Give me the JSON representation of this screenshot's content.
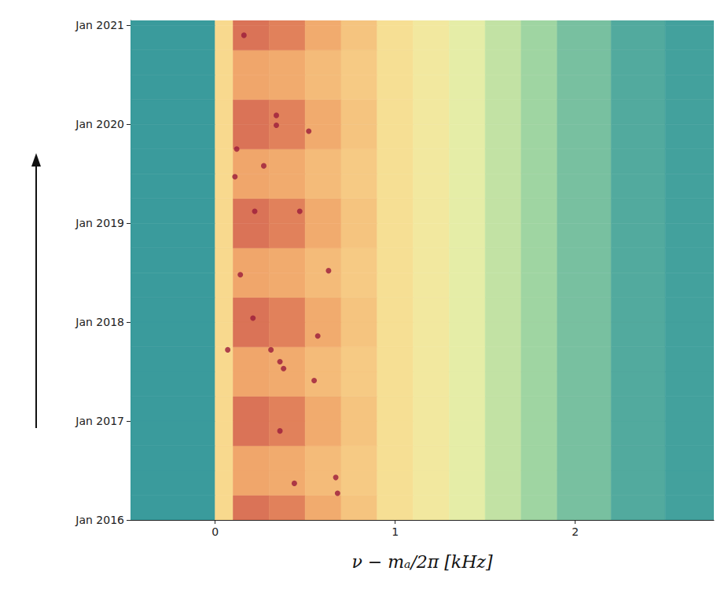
{
  "chart_data": {
    "type": "heatmap",
    "x_label": "ν − mₐ/2π [kHz]",
    "xlim": [
      -0.47,
      2.77
    ],
    "xticks": [
      0,
      1,
      2
    ],
    "ylim": [
      2016,
      2021.05
    ],
    "yticks": [
      {
        "value": 2016,
        "label": "Jan 2016"
      },
      {
        "value": 2017,
        "label": "Jan 2017"
      },
      {
        "value": 2018,
        "label": "Jan 2018"
      },
      {
        "value": 2019,
        "label": "Jan 2019"
      },
      {
        "value": 2020,
        "label": "Jan 2020"
      },
      {
        "value": 2021,
        "label": "Jan 2021"
      }
    ],
    "color_range": [
      0,
      1
    ],
    "cells": {
      "x_edges": [
        -0.5,
        0,
        0.1,
        0.3,
        0.5,
        0.7,
        0.9,
        1.1,
        1.3,
        1.5,
        1.7,
        1.9,
        2.2,
        2.5,
        2.8
      ],
      "y_edges": [
        2016,
        2016.25,
        2016.5,
        2016.75,
        2017,
        2017.25,
        2017.5,
        2017.75,
        2018,
        2018.25,
        2018.5,
        2018.75,
        2019,
        2019.25,
        2019.5,
        2019.75,
        2020,
        2020.25,
        2020.5,
        2020.75,
        2021,
        2021.25
      ],
      "values": [
        [
          0,
          0.5,
          0.8,
          0.78,
          0.66,
          0.57,
          0.47,
          0.42,
          0.36,
          0.3,
          0.24,
          0.17,
          0.08,
          0.03
        ],
        [
          0,
          0.5,
          0.68,
          0.66,
          0.6,
          0.55,
          0.47,
          0.42,
          0.36,
          0.3,
          0.24,
          0.17,
          0.08,
          0.03
        ],
        [
          0,
          0.5,
          0.68,
          0.66,
          0.6,
          0.55,
          0.47,
          0.42,
          0.36,
          0.3,
          0.24,
          0.17,
          0.08,
          0.03
        ],
        [
          0,
          0.5,
          0.8,
          0.78,
          0.66,
          0.57,
          0.47,
          0.42,
          0.36,
          0.3,
          0.24,
          0.17,
          0.08,
          0.03
        ],
        [
          0,
          0.5,
          0.8,
          0.78,
          0.66,
          0.57,
          0.47,
          0.42,
          0.36,
          0.3,
          0.24,
          0.17,
          0.08,
          0.03
        ],
        [
          0,
          0.5,
          0.68,
          0.66,
          0.6,
          0.55,
          0.47,
          0.42,
          0.36,
          0.3,
          0.24,
          0.17,
          0.08,
          0.03
        ],
        [
          0,
          0.5,
          0.68,
          0.66,
          0.6,
          0.55,
          0.47,
          0.42,
          0.36,
          0.3,
          0.24,
          0.17,
          0.08,
          0.03
        ],
        [
          0,
          0.5,
          0.8,
          0.78,
          0.66,
          0.57,
          0.47,
          0.42,
          0.36,
          0.3,
          0.24,
          0.17,
          0.08,
          0.03
        ],
        [
          0,
          0.5,
          0.8,
          0.78,
          0.66,
          0.57,
          0.47,
          0.42,
          0.36,
          0.3,
          0.24,
          0.17,
          0.08,
          0.03
        ],
        [
          0,
          0.5,
          0.68,
          0.66,
          0.6,
          0.55,
          0.47,
          0.42,
          0.36,
          0.3,
          0.24,
          0.17,
          0.08,
          0.03
        ],
        [
          0,
          0.5,
          0.68,
          0.66,
          0.6,
          0.55,
          0.47,
          0.42,
          0.36,
          0.3,
          0.24,
          0.17,
          0.08,
          0.03
        ],
        [
          0,
          0.5,
          0.8,
          0.78,
          0.66,
          0.57,
          0.47,
          0.42,
          0.36,
          0.3,
          0.24,
          0.17,
          0.08,
          0.03
        ],
        [
          0,
          0.5,
          0.8,
          0.78,
          0.66,
          0.57,
          0.47,
          0.42,
          0.36,
          0.3,
          0.24,
          0.17,
          0.08,
          0.03
        ],
        [
          0,
          0.5,
          0.68,
          0.66,
          0.6,
          0.55,
          0.47,
          0.42,
          0.36,
          0.3,
          0.24,
          0.17,
          0.08,
          0.03
        ],
        [
          0,
          0.5,
          0.68,
          0.66,
          0.6,
          0.55,
          0.47,
          0.42,
          0.36,
          0.3,
          0.24,
          0.17,
          0.08,
          0.03
        ],
        [
          0,
          0.5,
          0.8,
          0.78,
          0.66,
          0.57,
          0.47,
          0.42,
          0.36,
          0.3,
          0.24,
          0.17,
          0.08,
          0.03
        ],
        [
          0,
          0.5,
          0.8,
          0.78,
          0.66,
          0.57,
          0.47,
          0.42,
          0.36,
          0.3,
          0.24,
          0.17,
          0.08,
          0.03
        ],
        [
          0,
          0.5,
          0.68,
          0.66,
          0.6,
          0.55,
          0.47,
          0.42,
          0.36,
          0.3,
          0.24,
          0.17,
          0.08,
          0.03
        ],
        [
          0,
          0.5,
          0.68,
          0.66,
          0.6,
          0.55,
          0.47,
          0.42,
          0.36,
          0.3,
          0.24,
          0.17,
          0.08,
          0.03
        ],
        [
          0,
          0.5,
          0.8,
          0.78,
          0.66,
          0.57,
          0.47,
          0.42,
          0.36,
          0.3,
          0.24,
          0.17,
          0.08,
          0.03
        ],
        [
          0,
          0.5,
          0.8,
          0.78,
          0.66,
          0.57,
          0.47,
          0.42,
          0.36,
          0.3,
          0.24,
          0.17,
          0.08,
          0.03
        ]
      ]
    },
    "spots": {
      "color": "#9b1b3b",
      "x": [
        0.68,
        0.67,
        0.44,
        0.36,
        0.57,
        0.31,
        0.55,
        0.07,
        0.21,
        0.63,
        0.14,
        0.22,
        0.47,
        0.11,
        0.27,
        0.34,
        0.34,
        0.52,
        0.16,
        0.12,
        0.36,
        0.38
      ],
      "y": [
        2016.27,
        2016.43,
        2016.37,
        2016.9,
        2017.86,
        2017.72,
        2017.41,
        2017.72,
        2018.04,
        2018.52,
        2018.48,
        2019.12,
        2019.12,
        2019.47,
        2019.58,
        2019.99,
        2020.09,
        2019.93,
        2020.9,
        2019.75,
        2017.6,
        2017.53
      ]
    }
  }
}
